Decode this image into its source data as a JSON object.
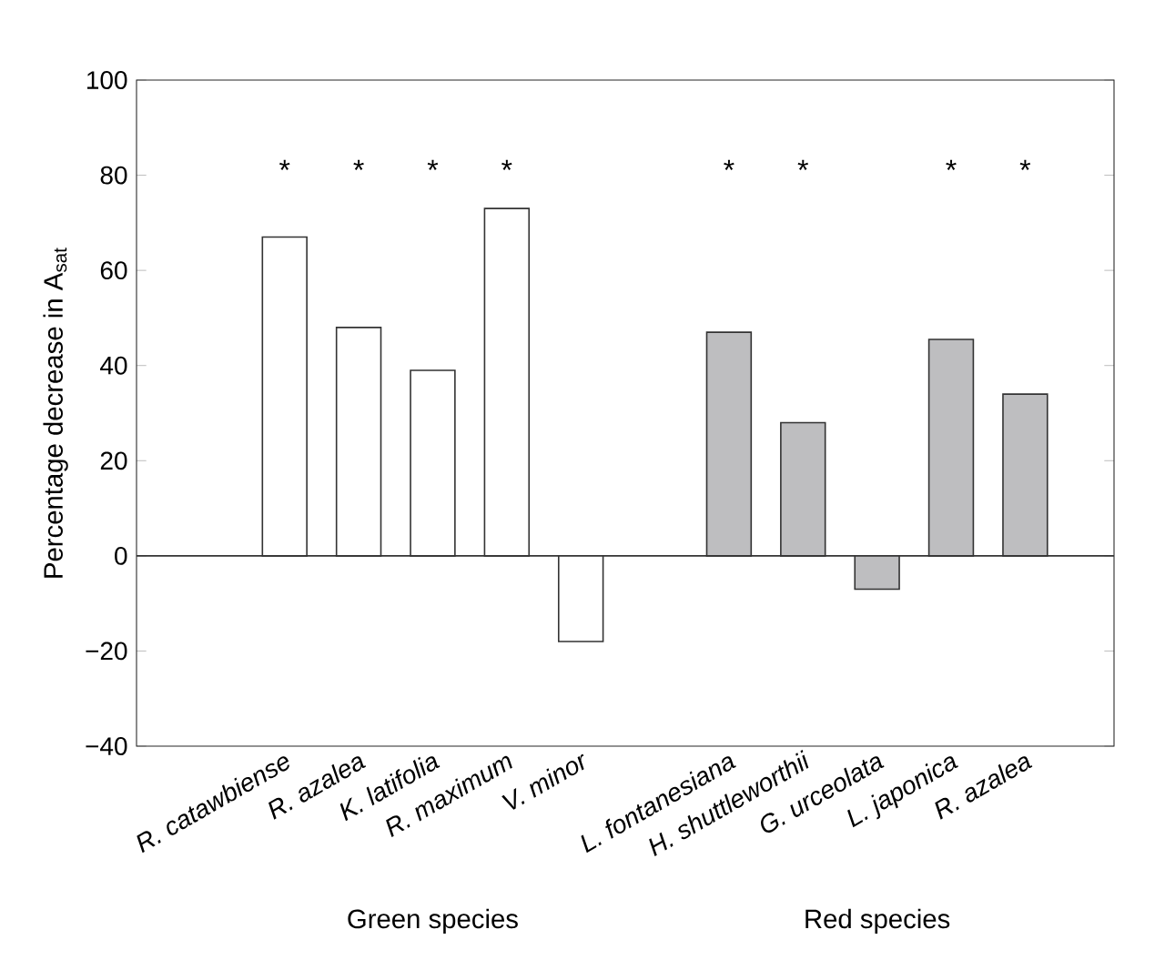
{
  "chart_data": {
    "type": "bar",
    "ylabel": "Percentage decrease in A$_{sat}$",
    "categories": [
      "R. catawbiense",
      "R. azalea",
      "K. latifolia",
      "R. maximum",
      "V. minor",
      null,
      "L. fontanesiana",
      "H. shuttleworthii",
      "G. urceolata",
      "L. japonica",
      "R. azalea"
    ],
    "values": [
      67,
      48,
      39,
      73,
      -18,
      null,
      47,
      28,
      -7,
      45.5,
      34
    ],
    "colors": [
      "#ffffff",
      "#ffffff",
      "#ffffff",
      "#ffffff",
      "#ffffff",
      null,
      "#bebec0",
      "#bebec0",
      "#bebec0",
      "#bebec0",
      "#bebec0"
    ],
    "ylim": [
      -40,
      100
    ],
    "yticks": [
      {
        "value": -40,
        "label": "−40"
      },
      {
        "value": -20,
        "label": "−20"
      },
      0,
      20,
      40,
      60,
      80,
      100
    ],
    "ref_lines": [
      {
        "axis": "y",
        "value": 0
      }
    ],
    "annotations": [
      "*",
      "*",
      "*",
      "*",
      "*",
      "*",
      "*",
      "*",
      "Green species",
      "Red species"
    ]
  }
}
